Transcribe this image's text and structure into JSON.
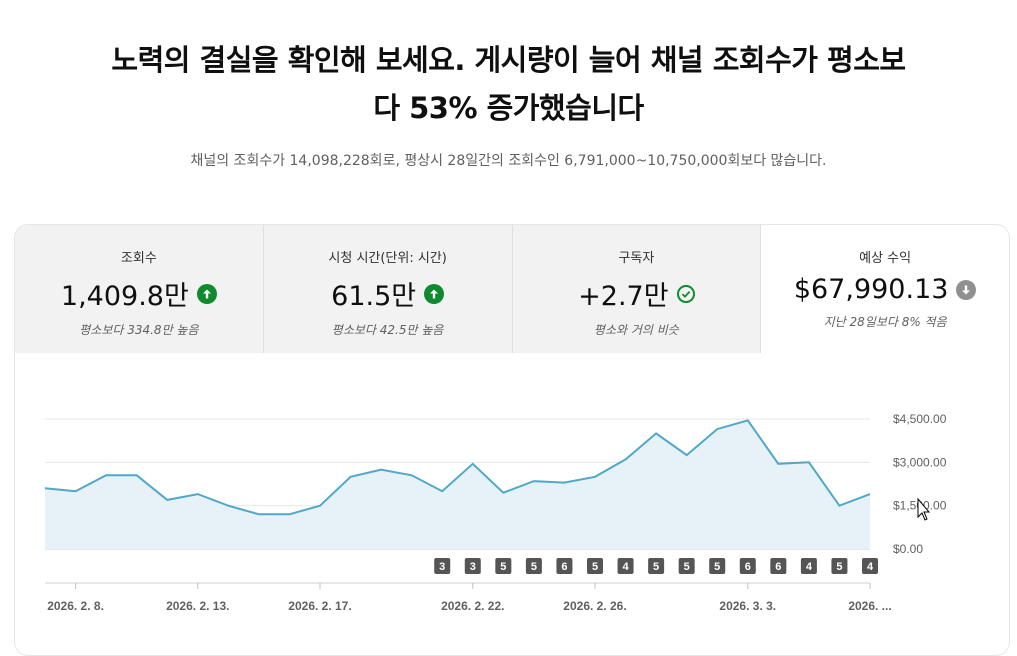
{
  "headline": {
    "line1": "노력의 결실을 확인해 보세요. 게시량이 늘어 채널 조회수가 평소보",
    "line2": "다 53% 증가했습니다"
  },
  "subline": "채널의 조회수가 14,098,228회로, 평상시 28일간의 조회수인 6,791,000~10,750,000회보다 많습니다.",
  "metrics": [
    {
      "label": "조회수",
      "value": "1,409.8만",
      "note": "평소보다 334.8만 높음",
      "icon": "arrow-up-circle-icon",
      "color": "#0f8a2e"
    },
    {
      "label": "시청 시간(단위: 시간)",
      "value": "61.5만",
      "note": "평소보다 42.5만 높음",
      "icon": "arrow-up-circle-icon",
      "color": "#0f8a2e"
    },
    {
      "label": "구독자",
      "value": "+2.7만",
      "note": "평소와 거의 비슷",
      "icon": "check-circle-icon",
      "color": "#0f8a2e"
    },
    {
      "label": "예상 수익",
      "value": "$67,990.13",
      "note": "지난 28일보다 8% 적음",
      "icon": "arrow-down-circle-icon",
      "color": "#909090"
    }
  ],
  "chart_data": {
    "type": "area",
    "y_ticks": [
      "$0.00",
      "$1,500.00",
      "$3,000.00",
      "$4,500.00"
    ],
    "y_tick_values": [
      0,
      1500,
      3000,
      4500
    ],
    "ylim": [
      0,
      4500
    ],
    "x_labels": [
      "2026. 2. 8.",
      "2026. 2. 13.",
      "2026. 2. 17.",
      "2026. 2. 22.",
      "2026. 2. 26.",
      "2026. 3. 3.",
      "2026. ..."
    ],
    "x_label_indices": [
      1,
      5,
      9,
      14,
      18,
      23,
      27
    ],
    "values": [
      2100,
      2000,
      2550,
      2550,
      1700,
      1900,
      1500,
      1200,
      1200,
      1500,
      2500,
      2750,
      2550,
      2000,
      2950,
      1950,
      2350,
      2300,
      2500,
      3100,
      4000,
      3250,
      4150,
      4450,
      2950,
      3000,
      1500,
      1900
    ],
    "upload_badges": [
      "3",
      "3",
      "5",
      "5",
      "6",
      "5",
      "4",
      "5",
      "5",
      "5",
      "6",
      "6",
      "4",
      "5",
      "4"
    ],
    "badge_start_index": 13,
    "line_color": "#4fa8c9",
    "fill_color": "#e6f2f8",
    "grid": true
  }
}
